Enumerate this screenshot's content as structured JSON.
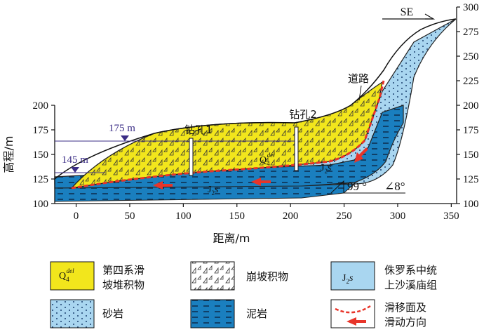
{
  "direction_label": "SE",
  "x_axis": {
    "title": "距离/m",
    "ticks": [
      "0",
      "50",
      "100",
      "150",
      "200",
      "250",
      "300",
      "350"
    ],
    "range": [
      -20,
      355
    ]
  },
  "y_axis_left": {
    "title": "高程/m",
    "ticks": [
      "100",
      "125",
      "150",
      "175",
      "200"
    ],
    "range": [
      100,
      300
    ]
  },
  "y_axis_right": {
    "ticks": [
      "100",
      "125",
      "150",
      "175",
      "200",
      "225",
      "250",
      "275",
      "300"
    ]
  },
  "water_levels": [
    {
      "label": "175 m",
      "elevation": 175
    },
    {
      "label": "145 m",
      "elevation": 145
    }
  ],
  "boreholes": [
    {
      "label": "钻孔1",
      "x": 105
    },
    {
      "label": "钻孔2",
      "x": 200
    }
  ],
  "road_label": "道路",
  "unit_labels": {
    "q4_main": "Q",
    "q4_sub": "4",
    "q4_sup": "del",
    "j2s_main": "J",
    "j2s_sub": "2",
    "j2s_tail": "s"
  },
  "dip_annotation": {
    "azimuth": "99 °",
    "angle": "∠8°"
  },
  "legend": [
    {
      "swatch": "q4",
      "text_lines": [
        "第四系滑",
        "坡堆积物"
      ]
    },
    {
      "swatch": "colluvium",
      "text_lines": [
        "崩坡积物"
      ]
    },
    {
      "swatch": "j2s",
      "text_lines": [
        "侏罗系中统",
        "上沙溪庙组"
      ]
    },
    {
      "swatch": "sandstone",
      "text_lines": [
        "砂岩"
      ]
    },
    {
      "swatch": "mudstone",
      "text_lines": [
        "泥岩"
      ]
    },
    {
      "swatch": "slip",
      "text_lines": [
        "滑移面及",
        "滑动方向"
      ]
    }
  ],
  "colors": {
    "landslide_fill": "#f2e61c",
    "sandstone_fill": "#a9d6f0",
    "mudstone_fill": "#1a7fbf",
    "slip_red": "#e8352a",
    "water_line": "#3b2d86"
  }
}
